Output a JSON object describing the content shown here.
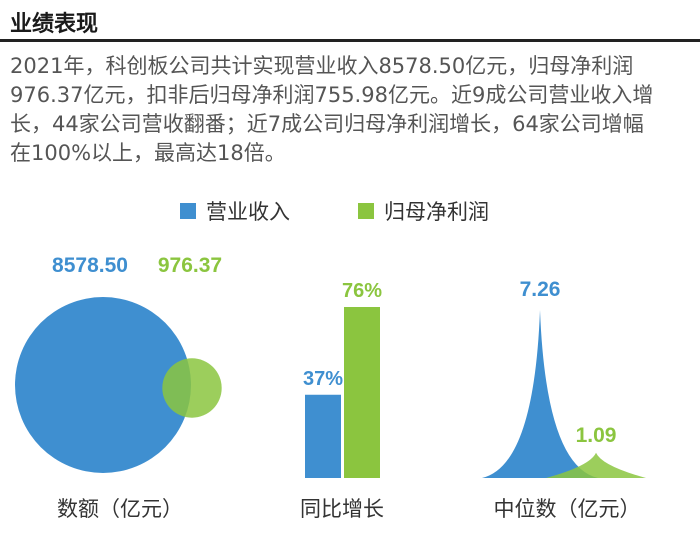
{
  "title": "业绩表现",
  "summary": [
    "2021年，科创板公司共计实现营业收入8578.50亿元，归母净利润",
    "976.37亿元，扣非后归母净利润755.98亿元。近9成公司营业收入增",
    "长，44家公司营收翻番；近7成公司归母净利润增长，64家公司增幅",
    "在100%以上，最高达18倍。"
  ],
  "legend": [
    {
      "name": "营业收入",
      "color": "#3f8fd0"
    },
    {
      "name": "归母净利润",
      "color": "#8bc53f"
    }
  ],
  "chart_data": [
    {
      "type": "bubble",
      "xlabel": "数额（亿元）",
      "series": [
        {
          "name": "营业收入",
          "value": 8578.5,
          "label": "8578.50"
        },
        {
          "name": "归母净利润",
          "value": 976.37,
          "label": "976.37"
        }
      ]
    },
    {
      "type": "bar",
      "xlabel": "同比增长",
      "unit": "%",
      "series": [
        {
          "name": "营业收入",
          "value": 37,
          "label": "37%"
        },
        {
          "name": "归母净利润",
          "value": 76,
          "label": "76%"
        }
      ],
      "ylim": [
        0,
        100
      ]
    },
    {
      "type": "area",
      "xlabel": "中位数（亿元）",
      "series": [
        {
          "name": "营业收入",
          "value": 7.26,
          "label": "7.26"
        },
        {
          "name": "归母净利润",
          "value": 1.09,
          "label": "1.09"
        }
      ]
    }
  ]
}
